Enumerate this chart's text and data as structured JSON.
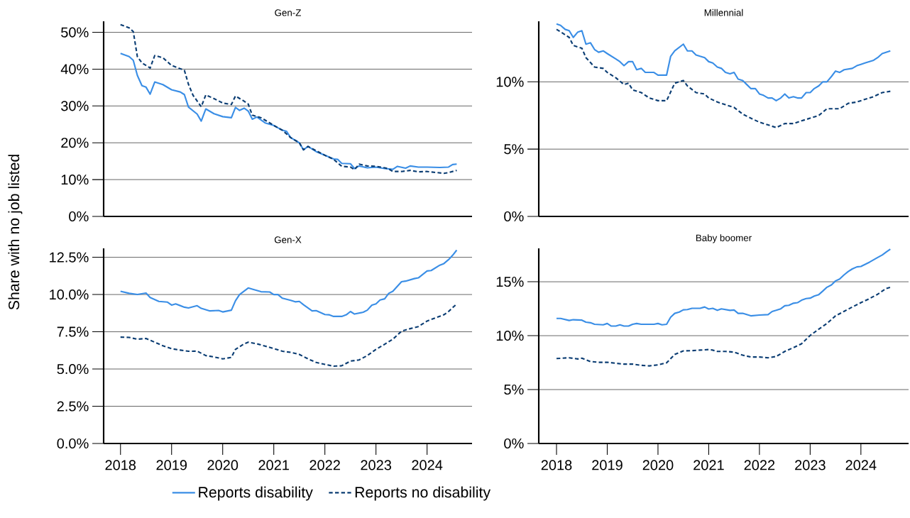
{
  "chart_data": [
    {
      "type": "line",
      "title": "Gen-Z",
      "ylabel": "Share with no job listed",
      "xlim": [
        2017.67,
        2024.88
      ],
      "ylim": [
        0,
        53
      ],
      "grid": "y",
      "tick_labels": "y",
      "yticks": [
        {
          "value": 0,
          "label": "0%"
        },
        {
          "value": 10,
          "label": "10%"
        },
        {
          "value": 20,
          "label": "20%"
        },
        {
          "value": 30,
          "label": "30%"
        },
        {
          "value": 40,
          "label": "40%"
        },
        {
          "value": 50,
          "label": "50%"
        }
      ],
      "series": [
        {
          "color": "#3a8ee6",
          "line_style": "solid",
          "x": [
            2018.0,
            2018.17,
            2018.25,
            2018.33,
            2018.42,
            2018.5,
            2018.58,
            2018.67,
            2018.83,
            2019.0,
            2019.17,
            2019.25,
            2019.33,
            2019.5,
            2019.58,
            2019.67,
            2019.83,
            2020.0,
            2020.17,
            2020.25,
            2020.33,
            2020.42,
            2020.5,
            2020.58,
            2020.67,
            2020.83,
            2021.0,
            2021.17,
            2021.25,
            2021.33,
            2021.5,
            2021.58,
            2021.67,
            2021.83,
            2022.0,
            2022.17,
            2022.25,
            2022.33,
            2022.5,
            2022.58,
            2022.67,
            2022.83,
            2023.0,
            2023.17,
            2023.33,
            2023.42,
            2023.58,
            2023.67,
            2023.83,
            2024.0,
            2024.25,
            2024.42,
            2024.5,
            2024.58
          ],
          "values": [
            44.3,
            43.4,
            42.4,
            38.3,
            35.5,
            35.1,
            33.2,
            36.5,
            35.8,
            34.4,
            33.8,
            33.1,
            29.7,
            27.8,
            25.9,
            29.2,
            27.9,
            27.1,
            26.8,
            29.6,
            28.8,
            29.4,
            28.6,
            26.4,
            27.0,
            25.4,
            24.7,
            23.4,
            23.1,
            21.4,
            20.0,
            18.1,
            19.0,
            17.6,
            16.6,
            15.6,
            15.5,
            14.4,
            14.3,
            13.0,
            13.7,
            13.2,
            13.4,
            13.0,
            12.8,
            13.6,
            13.1,
            13.7,
            13.4,
            13.4,
            13.3,
            13.4,
            14.1,
            14.2
          ]
        },
        {
          "color": "#0b3d73",
          "line_style": "dashed",
          "x": [
            2018.0,
            2018.17,
            2018.25,
            2018.33,
            2018.42,
            2018.58,
            2018.67,
            2018.83,
            2019.0,
            2019.25,
            2019.33,
            2019.42,
            2019.58,
            2019.67,
            2019.83,
            2020.0,
            2020.17,
            2020.25,
            2020.42,
            2020.5,
            2020.58,
            2020.75,
            2020.92,
            2021.0,
            2021.17,
            2021.33,
            2021.5,
            2021.58,
            2021.67,
            2022.0,
            2022.17,
            2022.33,
            2022.5,
            2022.58,
            2022.67,
            2022.83,
            2023.0,
            2023.17,
            2023.25,
            2023.33,
            2023.5,
            2023.67,
            2023.83,
            2024.0,
            2024.33,
            2024.42,
            2024.58
          ],
          "values": [
            52.1,
            51.2,
            50.2,
            43.4,
            41.7,
            40.3,
            43.7,
            43.1,
            41.0,
            39.7,
            35.9,
            32.9,
            29.8,
            33.0,
            32.0,
            30.8,
            30.4,
            32.7,
            31.3,
            30.5,
            27.5,
            26.8,
            25.4,
            24.7,
            23.4,
            21.4,
            20.0,
            18.1,
            19.0,
            16.6,
            15.5,
            13.6,
            13.4,
            12.7,
            14.2,
            13.7,
            13.6,
            13.2,
            12.9,
            12.2,
            12.2,
            12.5,
            12.1,
            12.2,
            11.7,
            11.9,
            12.5
          ]
        }
      ]
    },
    {
      "type": "line",
      "title": "Millennial",
      "xlim": [
        2017.65,
        2024.94
      ],
      "ylim": [
        0,
        14.5
      ],
      "grid": "y",
      "tick_labels": "y",
      "yticks": [
        {
          "value": 0,
          "label": "0%"
        },
        {
          "value": 5,
          "label": "5%"
        },
        {
          "value": 10,
          "label": "10%"
        }
      ],
      "series": [
        {
          "color": "#3a8ee6",
          "line_style": "solid",
          "x": [
            2018.0,
            2018.08,
            2018.17,
            2018.25,
            2018.33,
            2018.42,
            2018.5,
            2018.58,
            2018.67,
            2018.75,
            2018.83,
            2018.92,
            2019.0,
            2019.17,
            2019.25,
            2019.33,
            2019.42,
            2019.5,
            2019.58,
            2019.67,
            2019.75,
            2019.92,
            2020.0,
            2020.17,
            2020.25,
            2020.33,
            2020.5,
            2020.58,
            2020.67,
            2020.75,
            2020.83,
            2020.92,
            2021.0,
            2021.08,
            2021.17,
            2021.25,
            2021.33,
            2021.42,
            2021.5,
            2021.58,
            2021.67,
            2021.75,
            2021.83,
            2021.92,
            2022.0,
            2022.08,
            2022.17,
            2022.25,
            2022.33,
            2022.42,
            2022.5,
            2022.58,
            2022.67,
            2022.75,
            2022.83,
            2022.92,
            2023.0,
            2023.08,
            2023.17,
            2023.25,
            2023.33,
            2023.42,
            2023.5,
            2023.58,
            2023.67,
            2023.83,
            2023.92,
            2024.0,
            2024.08,
            2024.25,
            2024.33,
            2024.42,
            2024.5,
            2024.58
          ],
          "values": [
            14.3,
            14.2,
            13.9,
            13.8,
            13.3,
            13.7,
            13.8,
            12.8,
            12.9,
            12.4,
            12.2,
            12.3,
            12.1,
            11.7,
            11.5,
            11.2,
            11.5,
            11.5,
            10.9,
            11.0,
            10.7,
            10.7,
            10.5,
            10.5,
            11.9,
            12.3,
            12.8,
            12.3,
            12.3,
            12.0,
            11.9,
            11.8,
            11.5,
            11.4,
            11.1,
            11.0,
            10.7,
            10.6,
            10.7,
            10.2,
            10.1,
            9.8,
            9.5,
            9.5,
            9.1,
            9.0,
            8.8,
            8.8,
            8.6,
            8.8,
            9.1,
            8.8,
            8.9,
            8.8,
            8.8,
            9.2,
            9.2,
            9.5,
            9.7,
            10.0,
            10.0,
            10.4,
            10.8,
            10.7,
            10.9,
            11.0,
            11.2,
            11.3,
            11.4,
            11.6,
            11.8,
            12.1,
            12.2,
            12.3
          ]
        },
        {
          "color": "#0b3d73",
          "line_style": "dashed",
          "x": [
            2018.0,
            2018.17,
            2018.25,
            2018.33,
            2018.5,
            2018.58,
            2018.75,
            2018.92,
            2019.0,
            2019.17,
            2019.33,
            2019.42,
            2019.5,
            2019.67,
            2019.83,
            2020.0,
            2020.17,
            2020.33,
            2020.5,
            2020.58,
            2020.75,
            2020.92,
            2021.0,
            2021.17,
            2021.33,
            2021.5,
            2021.67,
            2021.83,
            2022.0,
            2022.17,
            2022.33,
            2022.5,
            2022.67,
            2022.83,
            2023.0,
            2023.17,
            2023.33,
            2023.5,
            2023.58,
            2023.75,
            2023.92,
            2024.08,
            2024.25,
            2024.42,
            2024.58
          ],
          "values": [
            13.9,
            13.5,
            13.3,
            12.7,
            12.5,
            11.8,
            11.1,
            11.0,
            10.7,
            10.3,
            9.8,
            9.9,
            9.4,
            9.2,
            8.8,
            8.6,
            8.6,
            9.9,
            10.1,
            9.7,
            9.2,
            9.1,
            8.8,
            8.5,
            8.3,
            8.1,
            7.6,
            7.3,
            7.0,
            6.8,
            6.6,
            6.9,
            6.9,
            7.1,
            7.3,
            7.5,
            8.0,
            8.0,
            8.0,
            8.4,
            8.5,
            8.7,
            8.9,
            9.2,
            9.3
          ]
        }
      ]
    },
    {
      "type": "line",
      "title": "Gen-X",
      "xlim": [
        2017.67,
        2024.88
      ],
      "ylim": [
        0,
        13.1
      ],
      "grid": "y",
      "legend": "bottom",
      "xticks": [
        2018,
        2019,
        2020,
        2021,
        2022,
        2023,
        2024
      ],
      "yticks": [
        {
          "value": 0,
          "label": "0.0%"
        },
        {
          "value": 2.5,
          "label": "2.5%"
        },
        {
          "value": 5,
          "label": "5.0%"
        },
        {
          "value": 7.5,
          "label": "7.5%"
        },
        {
          "value": 10,
          "label": "10.0%"
        },
        {
          "value": 12.5,
          "label": "12.5%"
        }
      ],
      "series": [
        {
          "name": "Reports disability",
          "color": "#3a8ee6",
          "line_style": "solid",
          "x": [
            2018.0,
            2018.17,
            2018.33,
            2018.5,
            2018.58,
            2018.75,
            2018.92,
            2019.0,
            2019.08,
            2019.25,
            2019.33,
            2019.5,
            2019.58,
            2019.75,
            2019.92,
            2020.0,
            2020.17,
            2020.25,
            2020.33,
            2020.5,
            2020.58,
            2020.75,
            2020.92,
            2021.0,
            2021.08,
            2021.17,
            2021.33,
            2021.42,
            2021.5,
            2021.58,
            2021.75,
            2021.83,
            2022.0,
            2022.08,
            2022.17,
            2022.33,
            2022.42,
            2022.5,
            2022.58,
            2022.75,
            2022.83,
            2022.92,
            2023.0,
            2023.08,
            2023.17,
            2023.25,
            2023.33,
            2023.5,
            2023.58,
            2023.75,
            2023.83,
            2024.0,
            2024.08,
            2024.25,
            2024.33,
            2024.42,
            2024.5,
            2024.58
          ],
          "values": [
            10.22,
            10.08,
            10.0,
            10.1,
            9.8,
            9.54,
            9.49,
            9.29,
            9.37,
            9.15,
            9.1,
            9.25,
            9.07,
            8.9,
            8.93,
            8.83,
            8.95,
            9.58,
            10.0,
            10.44,
            10.36,
            10.19,
            10.17,
            10.0,
            10.0,
            9.75,
            9.61,
            9.51,
            9.54,
            9.32,
            8.9,
            8.92,
            8.66,
            8.64,
            8.53,
            8.53,
            8.64,
            8.86,
            8.69,
            8.81,
            8.95,
            9.29,
            9.37,
            9.63,
            9.71,
            10.08,
            10.22,
            10.86,
            10.9,
            11.07,
            11.12,
            11.58,
            11.61,
            11.97,
            12.08,
            12.34,
            12.63,
            12.98
          ]
        },
        {
          "name": "Reports no disability",
          "color": "#0b3d73",
          "line_style": "dashed",
          "x": [
            2018.0,
            2018.17,
            2018.33,
            2018.5,
            2018.67,
            2018.83,
            2019.0,
            2019.17,
            2019.33,
            2019.5,
            2019.67,
            2019.83,
            2020.0,
            2020.17,
            2020.25,
            2020.42,
            2020.5,
            2020.67,
            2020.83,
            2021.0,
            2021.17,
            2021.33,
            2021.5,
            2021.67,
            2021.83,
            2022.0,
            2022.17,
            2022.33,
            2022.5,
            2022.67,
            2022.83,
            2023.0,
            2023.17,
            2023.33,
            2023.5,
            2023.67,
            2023.83,
            2024.0,
            2024.17,
            2024.33,
            2024.42,
            2024.58
          ],
          "values": [
            7.14,
            7.12,
            7.0,
            7.05,
            6.8,
            6.56,
            6.36,
            6.27,
            6.19,
            6.2,
            5.9,
            5.81,
            5.68,
            5.78,
            6.32,
            6.69,
            6.8,
            6.69,
            6.54,
            6.37,
            6.19,
            6.12,
            5.98,
            5.68,
            5.44,
            5.31,
            5.19,
            5.22,
            5.53,
            5.61,
            5.9,
            6.32,
            6.66,
            7.0,
            7.54,
            7.71,
            7.85,
            8.22,
            8.44,
            8.64,
            8.86,
            9.37
          ]
        }
      ]
    },
    {
      "type": "line",
      "title": "Baby boomer",
      "xlim": [
        2017.65,
        2024.94
      ],
      "ylim": [
        0,
        18.1
      ],
      "grid": "y",
      "xticks": [
        2018,
        2019,
        2020,
        2021,
        2022,
        2023,
        2024
      ],
      "yticks": [
        {
          "value": 0,
          "label": "0%"
        },
        {
          "value": 5,
          "label": "5%"
        },
        {
          "value": 10,
          "label": "10%"
        },
        {
          "value": 15,
          "label": "15%"
        }
      ],
      "series": [
        {
          "color": "#3a8ee6",
          "line_style": "solid",
          "x": [
            2018.0,
            2018.08,
            2018.25,
            2018.33,
            2018.5,
            2018.58,
            2018.67,
            2018.75,
            2018.92,
            2019.0,
            2019.08,
            2019.17,
            2019.25,
            2019.33,
            2019.42,
            2019.5,
            2019.58,
            2019.67,
            2019.92,
            2020.0,
            2020.08,
            2020.17,
            2020.25,
            2020.33,
            2020.42,
            2020.5,
            2020.58,
            2020.67,
            2020.83,
            2020.92,
            2021.0,
            2021.08,
            2021.17,
            2021.25,
            2021.42,
            2021.5,
            2021.58,
            2021.67,
            2021.83,
            2022.0,
            2022.17,
            2022.25,
            2022.33,
            2022.42,
            2022.5,
            2022.58,
            2022.67,
            2022.75,
            2022.83,
            2022.92,
            2023.0,
            2023.08,
            2023.17,
            2023.25,
            2023.33,
            2023.42,
            2023.5,
            2023.58,
            2023.67,
            2023.75,
            2023.83,
            2023.92,
            2024.0,
            2024.17,
            2024.33,
            2024.42,
            2024.5,
            2024.58
          ],
          "values": [
            11.6,
            11.6,
            11.41,
            11.48,
            11.44,
            11.25,
            11.2,
            11.06,
            11.01,
            11.13,
            10.89,
            10.89,
            11.01,
            10.89,
            10.89,
            11.06,
            11.13,
            11.06,
            11.06,
            11.13,
            11.01,
            11.06,
            11.72,
            12.07,
            12.19,
            12.4,
            12.42,
            12.54,
            12.54,
            12.66,
            12.47,
            12.54,
            12.35,
            12.49,
            12.35,
            12.38,
            12.07,
            12.07,
            11.84,
            11.91,
            11.95,
            12.24,
            12.35,
            12.49,
            12.78,
            12.82,
            13.01,
            13.06,
            13.29,
            13.44,
            13.48,
            13.67,
            13.81,
            14.14,
            14.49,
            14.71,
            15.08,
            15.25,
            15.65,
            15.95,
            16.19,
            16.38,
            16.42,
            16.82,
            17.25,
            17.48,
            17.76,
            18.02
          ]
        },
        {
          "color": "#0b3d73",
          "line_style": "dashed",
          "x": [
            2018.0,
            2018.25,
            2018.42,
            2018.5,
            2018.67,
            2018.83,
            2019.0,
            2019.17,
            2019.33,
            2019.5,
            2019.67,
            2019.83,
            2020.0,
            2020.17,
            2020.33,
            2020.5,
            2020.67,
            2020.83,
            2021.0,
            2021.08,
            2021.17,
            2021.33,
            2021.5,
            2021.67,
            2021.83,
            2022.0,
            2022.17,
            2022.33,
            2022.5,
            2022.67,
            2022.83,
            2023.0,
            2023.17,
            2023.33,
            2023.5,
            2023.67,
            2023.83,
            2024.0,
            2024.17,
            2024.33,
            2024.5,
            2024.58
          ],
          "values": [
            7.88,
            7.95,
            7.84,
            7.91,
            7.6,
            7.53,
            7.53,
            7.44,
            7.36,
            7.36,
            7.25,
            7.2,
            7.29,
            7.48,
            8.26,
            8.59,
            8.61,
            8.66,
            8.71,
            8.66,
            8.54,
            8.54,
            8.47,
            8.19,
            8.02,
            8.02,
            7.95,
            8.07,
            8.54,
            8.89,
            9.25,
            10.02,
            10.61,
            11.13,
            11.84,
            12.26,
            12.66,
            13.06,
            13.44,
            13.84,
            14.38,
            14.49
          ]
        }
      ]
    }
  ]
}
